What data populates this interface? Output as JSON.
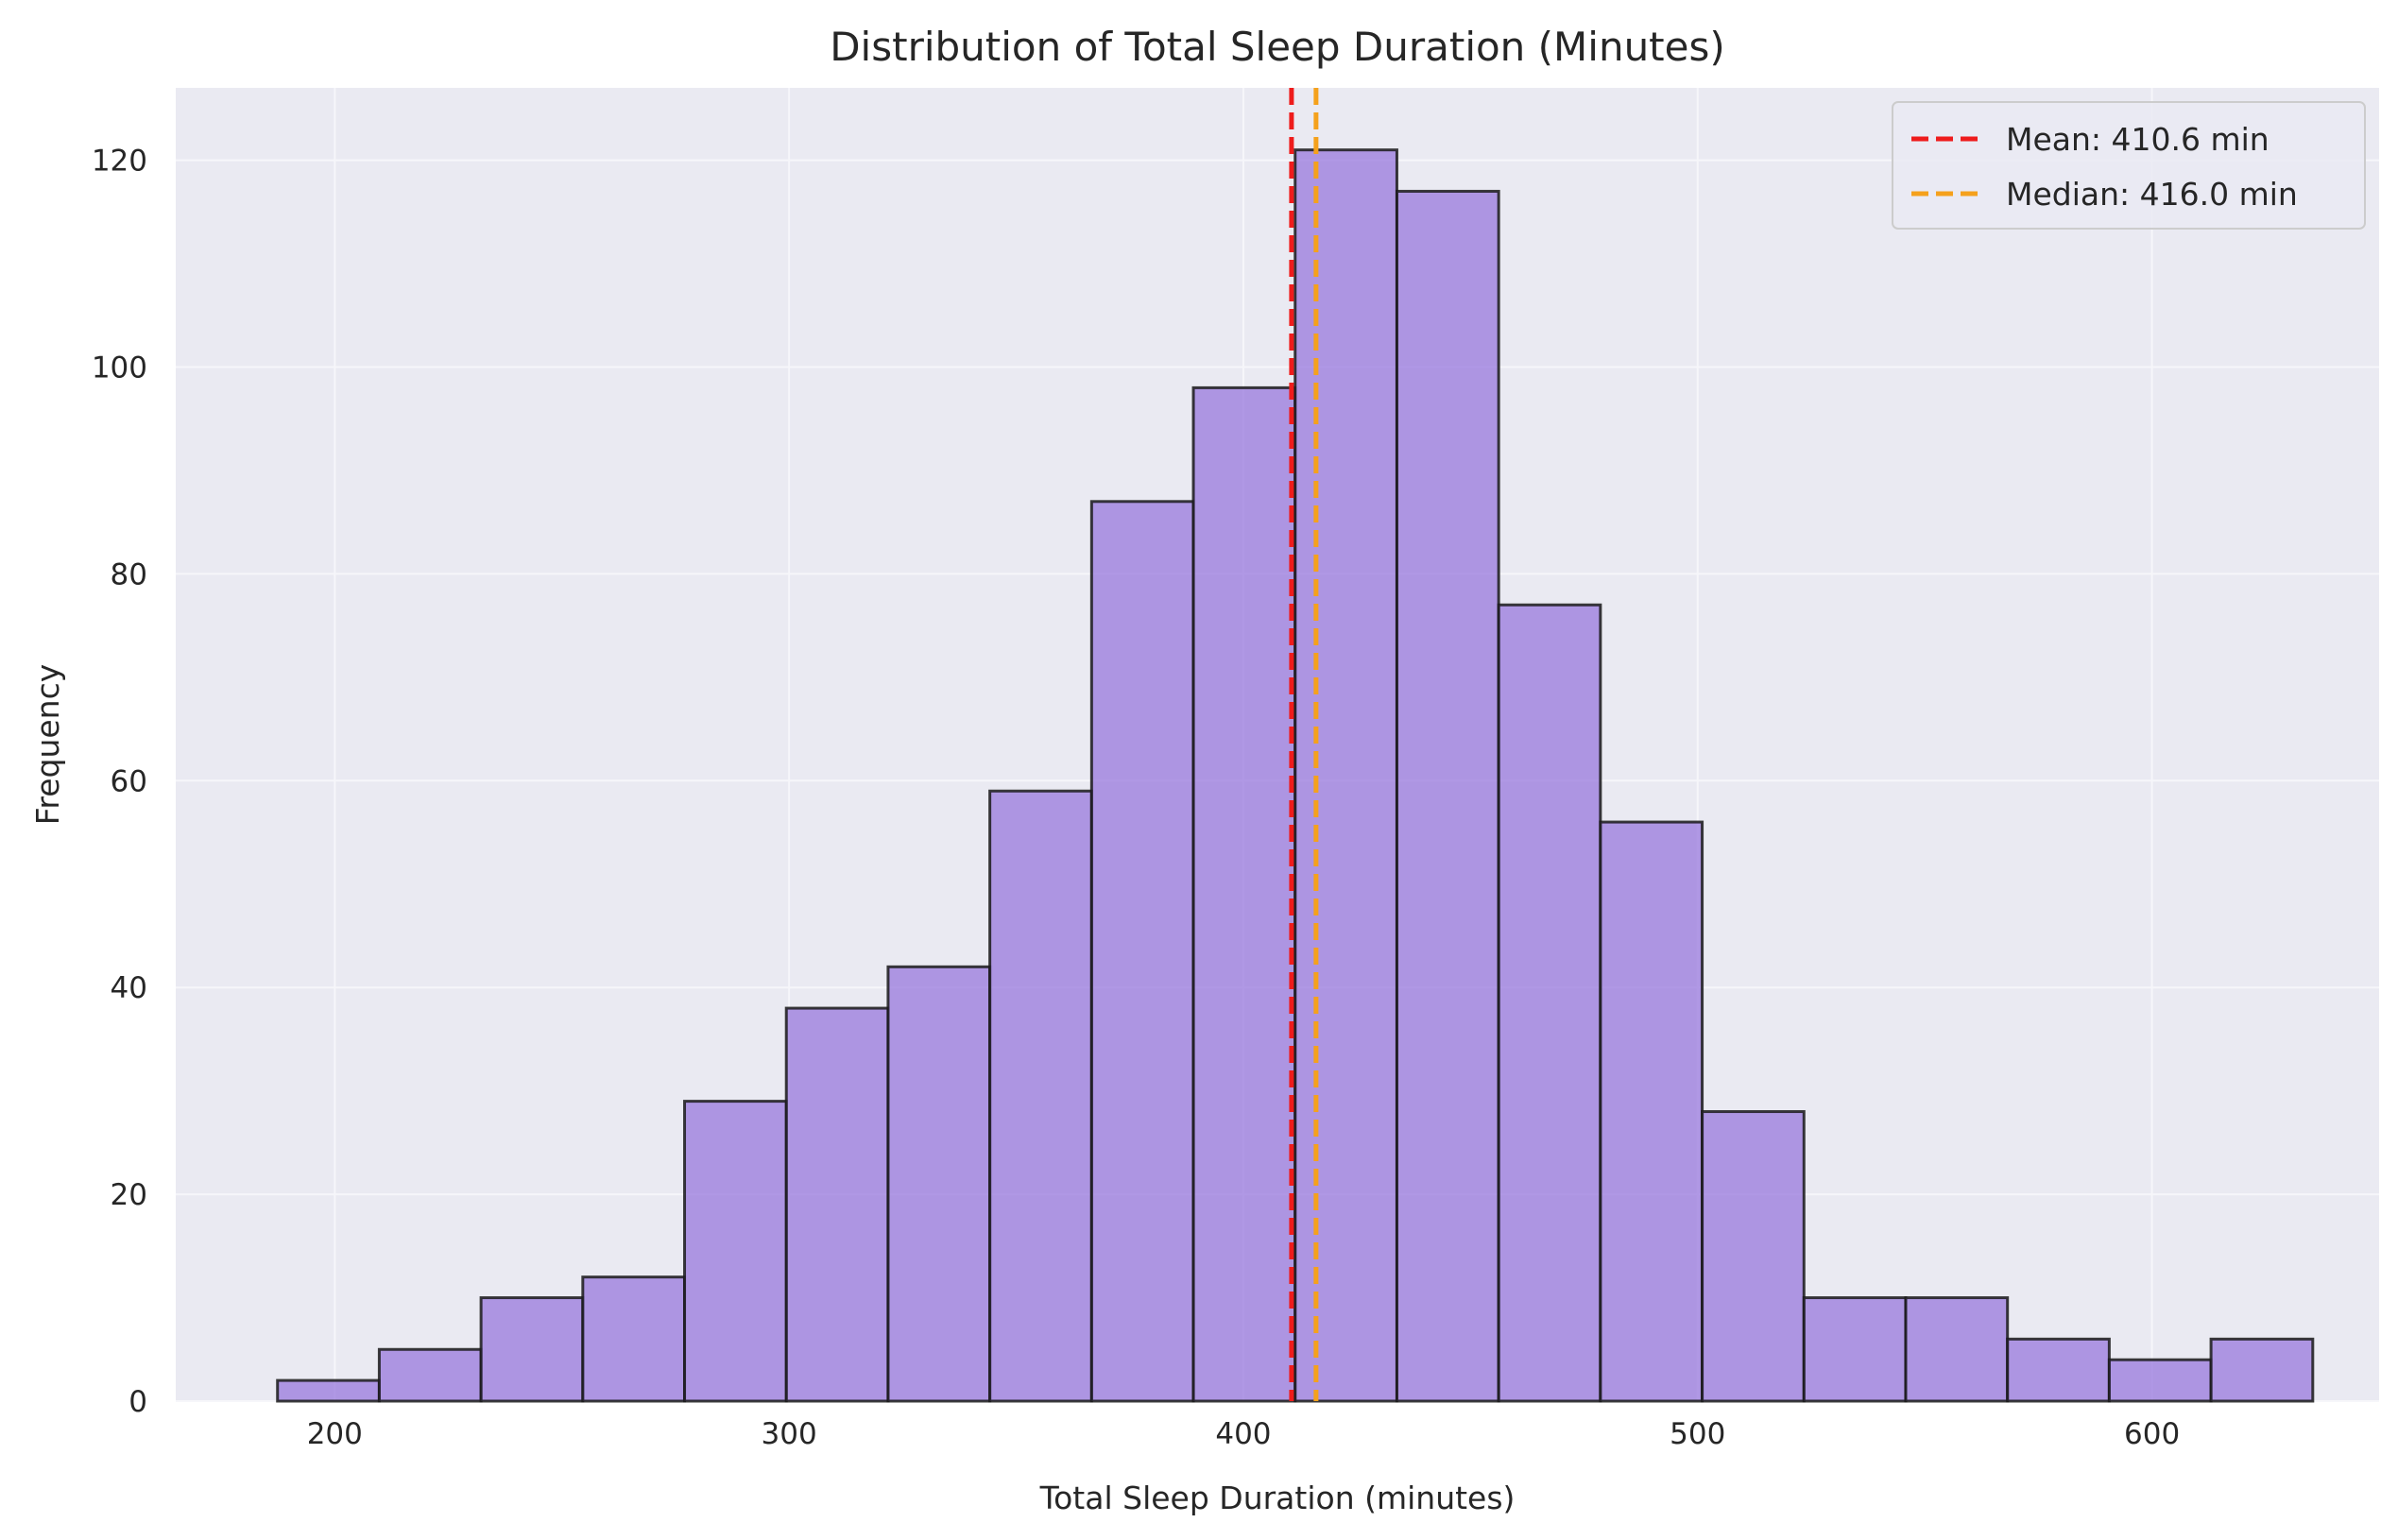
{
  "chart_data": {
    "type": "bar",
    "title": "Distribution of Total Sleep Duration (Minutes)",
    "xlabel": "Total Sleep Duration (minutes)",
    "ylabel": "Frequency",
    "xlim": [
      165,
      650
    ],
    "ylim": [
      0,
      127
    ],
    "xticks": [
      200,
      300,
      400,
      500,
      600
    ],
    "yticks": [
      0,
      20,
      40,
      60,
      80,
      100,
      120
    ],
    "grid": true,
    "legend_position": "top-right",
    "bin_edges": [
      187.4,
      209.8,
      232.2,
      254.6,
      277.0,
      299.4,
      321.8,
      344.2,
      366.6,
      389.0,
      411.4,
      433.8,
      456.2,
      478.6,
      501.0,
      523.4,
      545.8,
      568.2,
      590.6,
      613.0,
      635.4
    ],
    "values": [
      2,
      5,
      10,
      12,
      29,
      38,
      42,
      59,
      87,
      98,
      121,
      117,
      77,
      56,
      28,
      10,
      10,
      6,
      4,
      6
    ],
    "bar_color": "#9370db",
    "bar_edge_color": "#1a1a1a",
    "background_color": "#eaeaf2",
    "reference_lines": [
      {
        "name": "Mean: 410.6 min",
        "x": 410.6,
        "color": "#ee1c1c",
        "style": "dashed"
      },
      {
        "name": "Median: 416.0 min",
        "x": 416.0,
        "color": "#f5a11c",
        "style": "dashed"
      }
    ]
  }
}
